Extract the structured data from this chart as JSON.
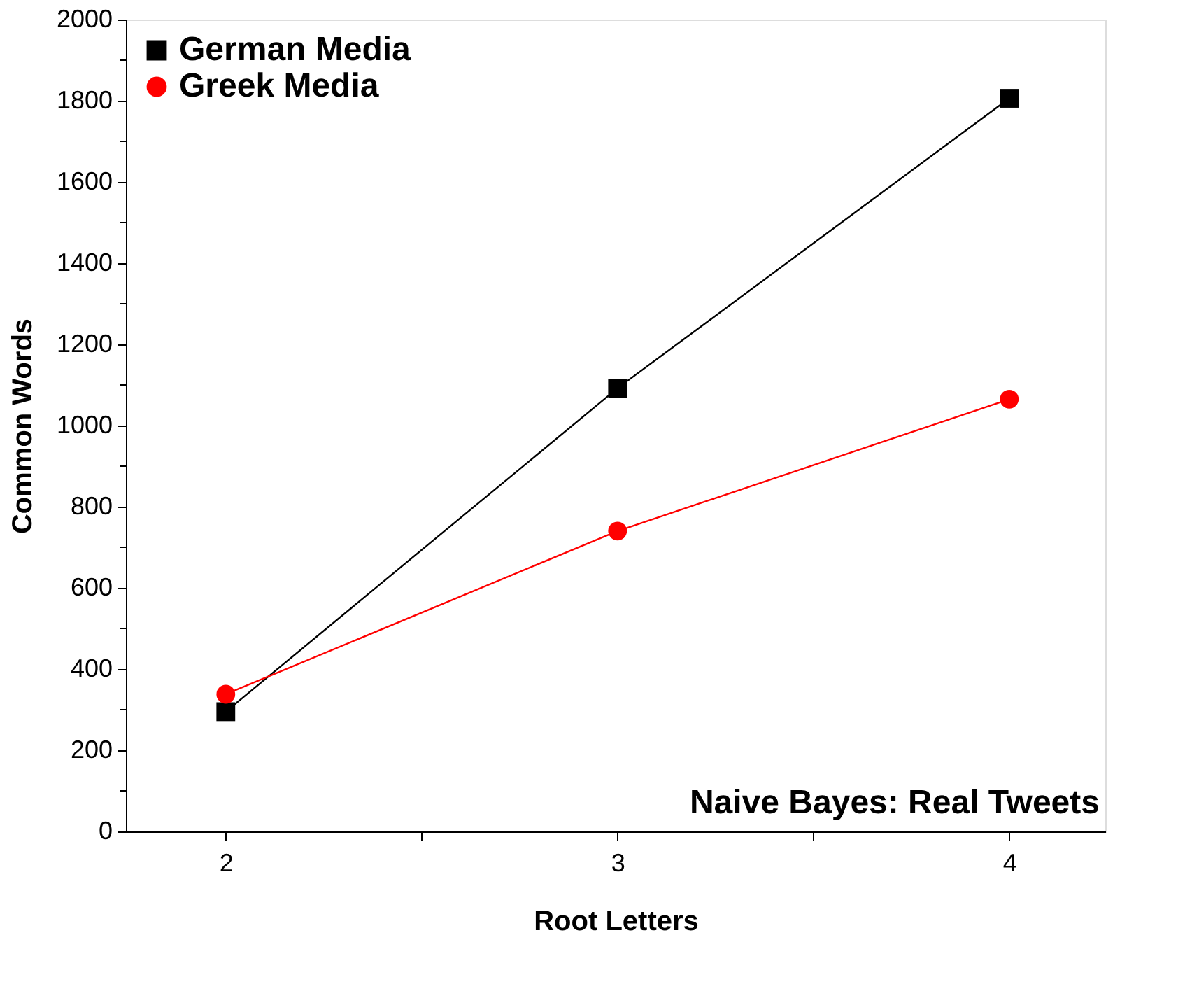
{
  "chart_data": {
    "type": "line",
    "xlabel": "Root Letters",
    "ylabel": "Common Words",
    "x": [
      2,
      3,
      4
    ],
    "series": [
      {
        "name": "German Media",
        "color": "#000000",
        "marker": "square",
        "values": [
          295,
          1092,
          1806
        ]
      },
      {
        "name": "Greek Media",
        "color": "#ff0000",
        "marker": "circle",
        "values": [
          338,
          740,
          1065
        ]
      }
    ],
    "xlim": [
      1.745,
      4.245
    ],
    "xticks": [
      2,
      {
        "value": 2.5,
        "label": null
      },
      3,
      {
        "value": 3.5,
        "label": null
      },
      4
    ],
    "ylim": [
      0,
      2000
    ],
    "yticks": [
      0,
      {
        "value": 100,
        "label": null
      },
      200,
      {
        "value": 300,
        "label": null
      },
      400,
      {
        "value": 500,
        "label": null
      },
      600,
      {
        "value": 700,
        "label": null
      },
      800,
      {
        "value": 900,
        "label": null
      },
      1000,
      {
        "value": 1100,
        "label": null
      },
      1200,
      {
        "value": 1300,
        "label": null
      },
      1400,
      {
        "value": 1500,
        "label": null
      },
      1600,
      {
        "value": 1700,
        "label": null
      },
      1800,
      {
        "value": 1900,
        "label": null
      },
      2000
    ],
    "legend": "top left",
    "grid": false,
    "line_style": "solid",
    "annotations": [
      "Naive Bayes: Real Tweets"
    ]
  }
}
